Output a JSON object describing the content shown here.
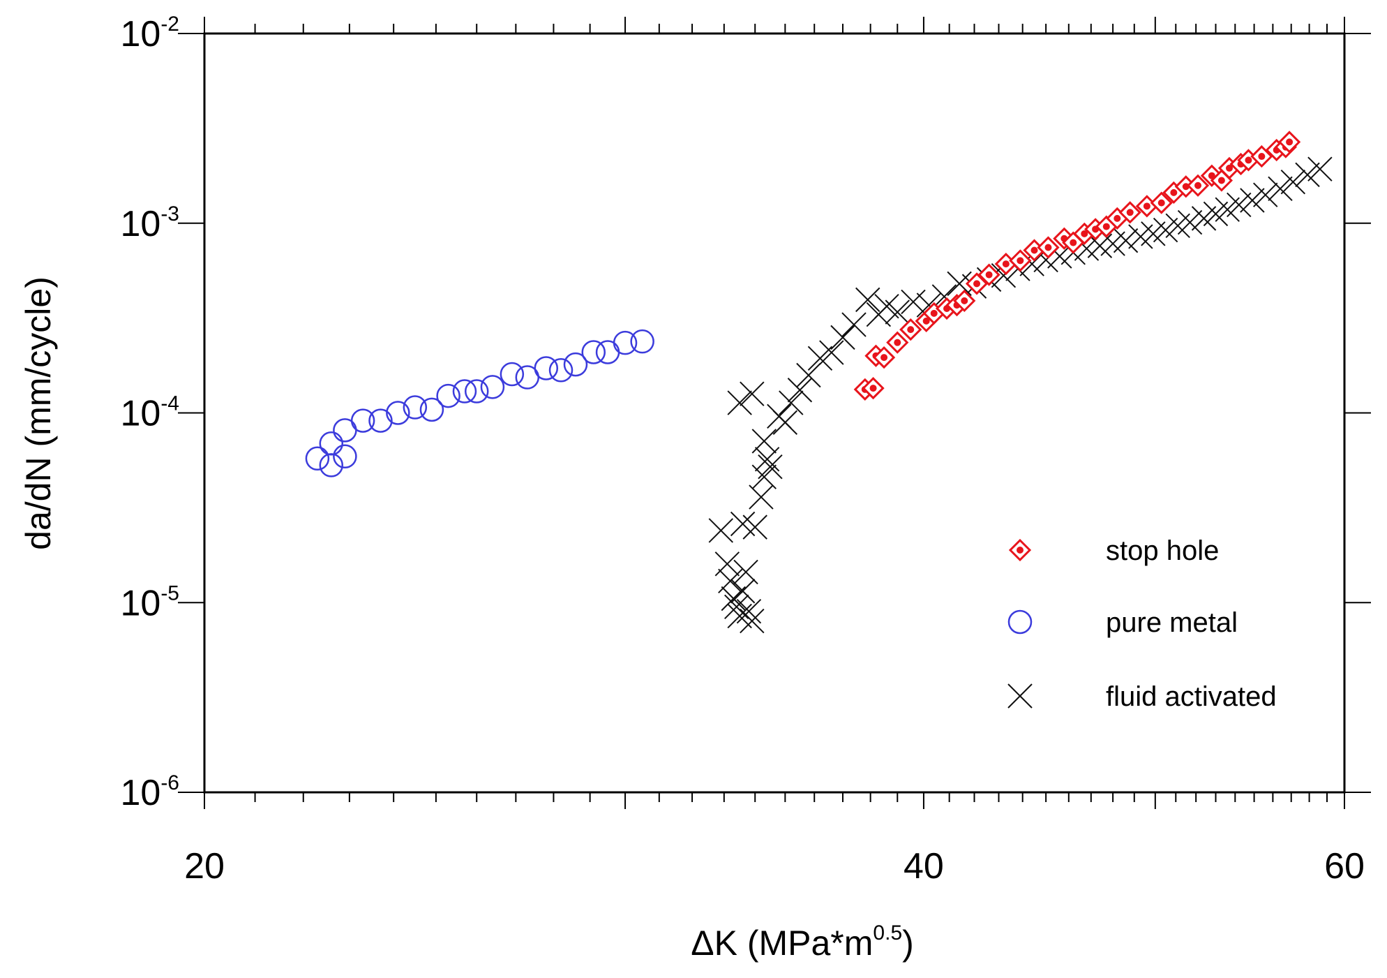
{
  "chart_data": {
    "type": "scatter",
    "title": "",
    "xlabel": "ΔK (MPa*m",
    "xlabel_superscript": "0.5",
    "xlabel_suffix": ")",
    "ylabel": "da/dN (mm/cycle)",
    "xscale": "log",
    "yscale": "log",
    "xlim": [
      20,
      60
    ],
    "ylim": [
      1e-06,
      0.01
    ],
    "x_tick_labels": [
      {
        "value": 20,
        "label": "20"
      },
      {
        "value": 40,
        "label": "40"
      },
      {
        "value": 60,
        "label": "60"
      }
    ],
    "y_tick_labels": [
      {
        "value": 1e-06,
        "base": "10",
        "exp": "-6"
      },
      {
        "value": 1e-05,
        "base": "10",
        "exp": "-5"
      },
      {
        "value": 0.0001,
        "base": "10",
        "exp": "-4"
      },
      {
        "value": 0.001,
        "base": "10",
        "exp": "-3"
      },
      {
        "value": 0.01,
        "base": "10",
        "exp": "-2"
      }
    ],
    "legend_position": "bottom-right",
    "series": [
      {
        "name": "stop hole",
        "marker": "diamond-dot",
        "color": "#e8141b",
        "x": [
          37.8,
          38.1,
          38.2,
          38.5,
          39.0,
          39.5,
          40.1,
          40.4,
          40.9,
          41.3,
          41.6,
          42.1,
          42.6,
          43.3,
          43.9,
          44.5,
          45.1,
          45.8,
          46.2,
          46.7,
          47.2,
          47.7,
          48.2,
          48.8,
          49.6,
          50.3,
          50.9,
          51.5,
          52.1,
          52.8,
          53.3,
          53.7,
          54.3,
          54.7,
          55.4,
          56.2,
          56.7,
          56.9
        ],
        "y": [
          0.000133,
          0.000135,
          0.0002,
          0.000196,
          0.000235,
          0.000275,
          0.000305,
          0.000335,
          0.000355,
          0.00037,
          0.00039,
          0.00048,
          0.000535,
          0.00061,
          0.000635,
          0.00072,
          0.000745,
          0.00083,
          0.00079,
          0.00088,
          0.00093,
          0.00096,
          0.00106,
          0.00114,
          0.00123,
          0.00128,
          0.00145,
          0.00156,
          0.00158,
          0.00178,
          0.00168,
          0.00195,
          0.00205,
          0.00215,
          0.00225,
          0.00243,
          0.00252,
          0.00268
        ]
      },
      {
        "name": "pure metal",
        "marker": "open-circle",
        "color": "#3b3bdc",
        "x": [
          22.3,
          22.6,
          22.6,
          22.9,
          22.9,
          23.3,
          23.7,
          24.1,
          24.5,
          24.9,
          25.3,
          25.7,
          26.0,
          26.4,
          26.9,
          27.3,
          27.8,
          28.2,
          28.6,
          29.1,
          29.5,
          30.0,
          30.5
        ],
        "y": [
          5.75e-05,
          5.3e-05,
          6.9e-05,
          8.1e-05,
          5.9e-05,
          9.1e-05,
          9.1e-05,
          0.0001,
          0.000107,
          0.000104,
          0.000123,
          0.00013,
          0.00013,
          0.000137,
          0.00016,
          0.000154,
          0.000172,
          0.000168,
          0.00018,
          0.000209,
          0.000209,
          0.000234,
          0.000238
        ]
      },
      {
        "name": "fluid activated",
        "marker": "x",
        "color": "#111111",
        "x": [
          32.9,
          33.1,
          33.2,
          33.3,
          33.4,
          33.5,
          33.6,
          33.7,
          33.8,
          33.9,
          33.6,
          33.5,
          33.9,
          34.0,
          34.2,
          34.3,
          34.4,
          34.3,
          34.5,
          34.8,
          35.0,
          35.2,
          35.5,
          35.8,
          36.2,
          36.6,
          37.0,
          37.4,
          37.9,
          38.3,
          38.6,
          39.0,
          39.6,
          40.2,
          40.8,
          41.4,
          42.0,
          42.6,
          43.2,
          43.8,
          44.4,
          45.0,
          45.6,
          46.2,
          46.8,
          47.4,
          48.0,
          48.6,
          49.3,
          49.9,
          50.5,
          51.1,
          51.7,
          52.4,
          53.0,
          53.6,
          54.2,
          54.9,
          55.6,
          56.4,
          57.1,
          57.9,
          58.6
        ],
        "y": [
          2.4e-05,
          1.6e-05,
          1.3e-05,
          1.05e-05,
          9.5e-06,
          8.5e-06,
          1.15e-05,
          1.45e-05,
          9e-06,
          8e-06,
          2.6e-05,
          0.000113,
          0.000126,
          2.5e-05,
          3.6e-05,
          4.6e-05,
          5.7e-05,
          7.1e-05,
          5.2e-05,
          9.6e-05,
          8.9e-05,
          0.000113,
          0.000132,
          0.000158,
          0.000194,
          0.000208,
          0.00025,
          0.000292,
          0.000395,
          0.00033,
          0.000365,
          0.00034,
          0.000385,
          0.00037,
          0.00041,
          0.00048,
          0.000465,
          0.000505,
          0.00053,
          0.000575,
          0.00061,
          0.00064,
          0.00067,
          0.0007,
          0.000735,
          0.00076,
          0.00078,
          0.00081,
          0.00085,
          0.00088,
          0.00092,
          0.00097,
          0.00101,
          0.00106,
          0.00112,
          0.00118,
          0.00125,
          0.00132,
          0.00141,
          0.00152,
          0.00165,
          0.0018,
          0.00193
        ]
      }
    ]
  }
}
